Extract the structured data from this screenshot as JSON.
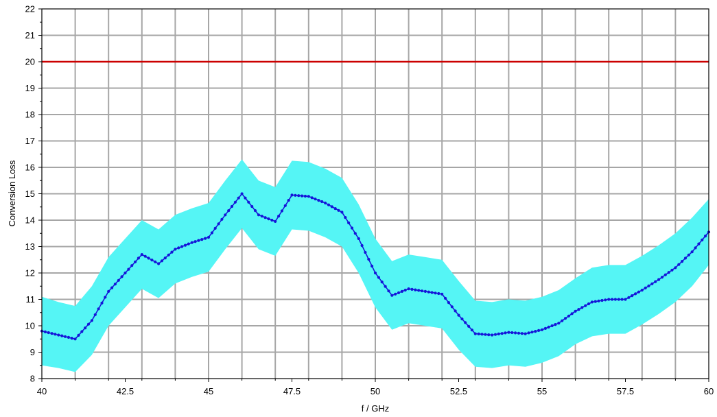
{
  "chart_data": {
    "type": "line",
    "title": "",
    "xlabel": "f / GHz",
    "ylabel": "Conversion Loss",
    "xlim": [
      40,
      60
    ],
    "ylim": [
      8,
      22
    ],
    "grid": true,
    "x_ticks": [
      "40",
      "42.5",
      "45",
      "47.5",
      "50",
      "52.5",
      "55",
      "57.5",
      "60"
    ],
    "y_ticks": [
      "8",
      "9",
      "10",
      "11",
      "12",
      "13",
      "14",
      "15",
      "16",
      "17",
      "18",
      "19",
      "20",
      "21",
      "22"
    ],
    "colors": {
      "main": "#1515d8",
      "band": "#55f5f5",
      "limit": "#cc0000",
      "grid": "#a6a6a6"
    },
    "series": [
      {
        "type": "line-markers",
        "x": [
          40,
          40.5,
          41,
          41.5,
          42,
          42.5,
          43,
          43.5,
          44,
          44.5,
          45,
          45.5,
          46,
          46.5,
          47,
          47.5,
          48,
          48.5,
          49,
          49.5,
          50,
          50.5,
          51,
          51.5,
          52,
          52.5,
          53,
          53.5,
          54,
          54.5,
          55,
          55.5,
          56,
          56.5,
          57,
          57.5,
          58,
          58.5,
          59,
          59.5,
          60
        ],
        "y": [
          9.8,
          9.65,
          9.5,
          10.2,
          11.3,
          12.0,
          12.7,
          12.35,
          12.9,
          13.15,
          13.35,
          14.2,
          15.0,
          14.2,
          13.95,
          14.95,
          14.9,
          14.65,
          14.3,
          13.3,
          12.0,
          11.15,
          11.4,
          11.3,
          11.2,
          10.4,
          9.7,
          9.65,
          9.75,
          9.7,
          9.85,
          10.1,
          10.55,
          10.9,
          11.0,
          11.0,
          11.35,
          11.75,
          12.2,
          12.8,
          13.55
        ]
      },
      {
        "type": "band-upper",
        "x": [
          40,
          40.5,
          41,
          41.5,
          42,
          42.5,
          43,
          43.5,
          44,
          44.5,
          45,
          45.5,
          46,
          46.5,
          47,
          47.5,
          48,
          48.5,
          49,
          49.5,
          50,
          50.5,
          51,
          51.5,
          52,
          52.5,
          53,
          53.5,
          54,
          54.5,
          55,
          55.5,
          56,
          56.5,
          57,
          57.5,
          58,
          58.5,
          59,
          59.5,
          60
        ],
        "y": [
          11.1,
          10.9,
          10.75,
          11.5,
          12.6,
          13.3,
          14.0,
          13.65,
          14.2,
          14.45,
          14.65,
          15.5,
          16.3,
          15.5,
          15.25,
          16.25,
          16.2,
          15.95,
          15.6,
          14.6,
          13.3,
          12.45,
          12.7,
          12.6,
          12.5,
          11.7,
          10.95,
          10.9,
          11.0,
          10.95,
          11.1,
          11.35,
          11.8,
          12.2,
          12.3,
          12.3,
          12.65,
          13.05,
          13.5,
          14.1,
          14.8
        ]
      },
      {
        "type": "band-lower",
        "x": [
          40,
          40.5,
          41,
          41.5,
          42,
          42.5,
          43,
          43.5,
          44,
          44.5,
          45,
          45.5,
          46,
          46.5,
          47,
          47.5,
          48,
          48.5,
          49,
          49.5,
          50,
          50.5,
          51,
          51.5,
          52,
          52.5,
          53,
          53.5,
          54,
          54.5,
          55,
          55.5,
          56,
          56.5,
          57,
          57.5,
          58,
          58.5,
          59,
          59.5,
          60
        ],
        "y": [
          8.5,
          8.4,
          8.25,
          8.9,
          10.0,
          10.7,
          11.4,
          11.05,
          11.6,
          11.85,
          12.05,
          12.9,
          13.7,
          12.9,
          12.65,
          13.65,
          13.6,
          13.35,
          13.0,
          12.0,
          10.7,
          9.85,
          10.1,
          10.0,
          9.9,
          9.1,
          8.45,
          8.4,
          8.5,
          8.45,
          8.6,
          8.85,
          9.3,
          9.6,
          9.7,
          9.7,
          10.05,
          10.45,
          10.9,
          11.5,
          12.3
        ]
      },
      {
        "type": "reference-line",
        "x": [
          40,
          60
        ],
        "y": [
          20,
          20
        ]
      }
    ]
  }
}
